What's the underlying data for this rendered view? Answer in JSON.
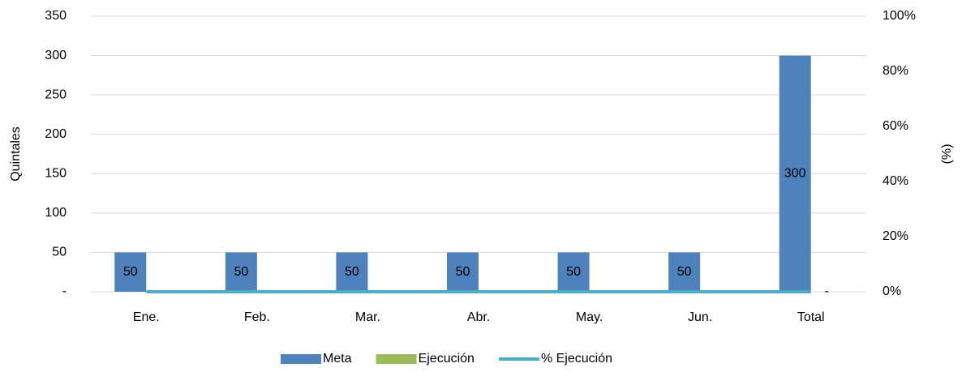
{
  "chart_data": {
    "type": "bar",
    "categories": [
      "Ene.",
      "Feb.",
      "Mar.",
      "Abr.",
      "May.",
      "Jun.",
      "Total"
    ],
    "series": [
      {
        "name": "Meta",
        "color": "#4f81bd",
        "values": [
          50,
          50,
          50,
          50,
          50,
          50,
          300
        ]
      },
      {
        "name": "Ejecución",
        "color": "#9bbb59",
        "values": [
          0,
          0,
          0,
          0,
          0,
          0,
          0
        ],
        "value_labels": [
          "-",
          "-",
          "-",
          "-",
          "-",
          "-",
          "-"
        ]
      },
      {
        "name": "% Ejecución",
        "color": "#4bacc6",
        "type": "line",
        "axis": "y2",
        "values": [
          0,
          0,
          0,
          0,
          0,
          0,
          0
        ]
      }
    ],
    "y_label": "Quintales",
    "y2_label": "(%)",
    "ylim": [
      0,
      350
    ],
    "yticks": [
      {
        "value": 0,
        "label": "-"
      },
      50,
      100,
      150,
      200,
      250,
      300,
      350
    ],
    "y2lim": [
      0,
      100
    ],
    "y2ticks": [
      {
        "value": 0,
        "label": "0%"
      },
      {
        "value": 20,
        "label": "20%"
      },
      {
        "value": 40,
        "label": "40%"
      },
      {
        "value": 60,
        "label": "60%"
      },
      {
        "value": 80,
        "label": "80%"
      },
      {
        "value": 100,
        "label": "100%"
      }
    ],
    "grid": true,
    "legend": "bottom"
  }
}
